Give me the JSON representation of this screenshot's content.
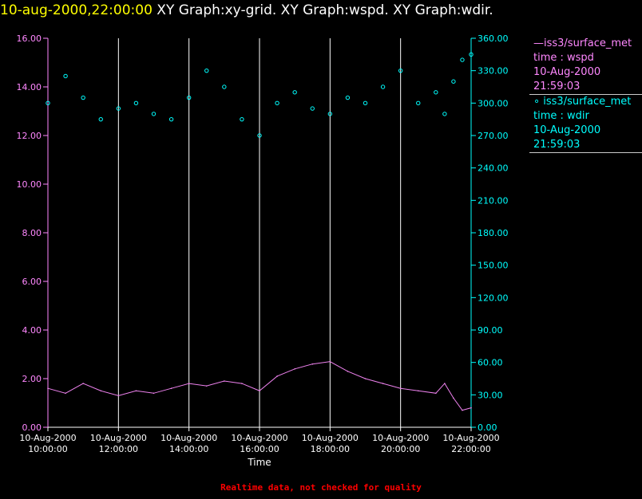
{
  "header": {
    "timestamp": "10-aug-2000,22:00:00",
    "graphs": " XY Graph:xy-grid.  XY Graph:wspd.  XY Graph:wdir."
  },
  "legend": {
    "wspd": {
      "line1": "—iss3/surface_met",
      "line2": "time : wspd",
      "line3": "10-Aug-2000",
      "line4": "21:59:03"
    },
    "wdir": {
      "line1": "∘ iss3/surface_met",
      "line2": "time : wdir",
      "line3": "10-Aug-2000",
      "line4": "21:59:03"
    }
  },
  "footer": "Realtime data, not checked for quality",
  "colors": {
    "wspd": "#ee82ee",
    "wdir": "#00ffff",
    "grid": "#ffffff",
    "left_axis": "#ff88ff",
    "title": "#ffff00"
  },
  "chart_data": {
    "type": "scatter",
    "xlabel": "Time",
    "x_ticks": [
      {
        "date": "10-Aug-2000",
        "time": "10:00:00"
      },
      {
        "date": "10-Aug-2000",
        "time": "12:00:00"
      },
      {
        "date": "10-Aug-2000",
        "time": "14:00:00"
      },
      {
        "date": "10-Aug-2000",
        "time": "16:00:00"
      },
      {
        "date": "10-Aug-2000",
        "time": "18:00:00"
      },
      {
        "date": "10-Aug-2000",
        "time": "20:00:00"
      },
      {
        "date": "10-Aug-2000",
        "time": "22:00:00"
      }
    ],
    "xlim": [
      "10-Aug-2000 10:00:00",
      "10-Aug-2000 22:00:00"
    ],
    "y_left_ticks": [
      "0.00",
      "2.00",
      "4.00",
      "6.00",
      "8.00",
      "10.00",
      "12.00",
      "14.00",
      "16.00"
    ],
    "y_left_lim": [
      0,
      16
    ],
    "y_right_ticks": [
      "0.00",
      "30.00",
      "60.00",
      "90.00",
      "120.00",
      "150.00",
      "180.00",
      "210.00",
      "240.00",
      "270.00",
      "300.00",
      "330.00",
      "360.00"
    ],
    "y_right_lim": [
      0,
      360
    ],
    "grid": "vertical lines at each time tick",
    "series": [
      {
        "name": "iss3/surface_met time : wspd",
        "style": "line",
        "axis": "left",
        "x": [
          "10:00",
          "10:30",
          "11:00",
          "11:30",
          "12:00",
          "12:30",
          "13:00",
          "13:30",
          "14:00",
          "14:30",
          "15:00",
          "15:30",
          "16:00",
          "16:30",
          "17:00",
          "17:30",
          "18:00",
          "18:30",
          "19:00",
          "19:30",
          "20:00",
          "20:30",
          "21:00",
          "21:15",
          "21:30",
          "21:45",
          "22:00"
        ],
        "values": [
          1.6,
          1.4,
          1.8,
          1.5,
          1.3,
          1.5,
          1.4,
          1.6,
          1.8,
          1.7,
          1.9,
          1.8,
          1.5,
          2.1,
          2.4,
          2.6,
          2.7,
          2.3,
          2.0,
          1.8,
          1.6,
          1.5,
          1.4,
          1.8,
          1.2,
          0.7,
          0.8
        ]
      },
      {
        "name": "iss3/surface_met time : wdir",
        "style": "markers",
        "axis": "right",
        "x": [
          "10:00",
          "10:30",
          "11:00",
          "11:30",
          "12:00",
          "12:30",
          "13:00",
          "13:30",
          "14:00",
          "14:30",
          "15:00",
          "15:30",
          "16:00",
          "16:30",
          "17:00",
          "17:30",
          "18:00",
          "18:30",
          "19:00",
          "19:30",
          "20:00",
          "20:30",
          "21:00",
          "21:15",
          "21:30",
          "21:45",
          "22:00"
        ],
        "values": [
          300,
          325,
          305,
          285,
          295,
          300,
          290,
          285,
          305,
          330,
          315,
          285,
          270,
          300,
          310,
          295,
          290,
          305,
          300,
          315,
          330,
          300,
          310,
          290,
          320,
          340,
          345
        ]
      }
    ]
  }
}
